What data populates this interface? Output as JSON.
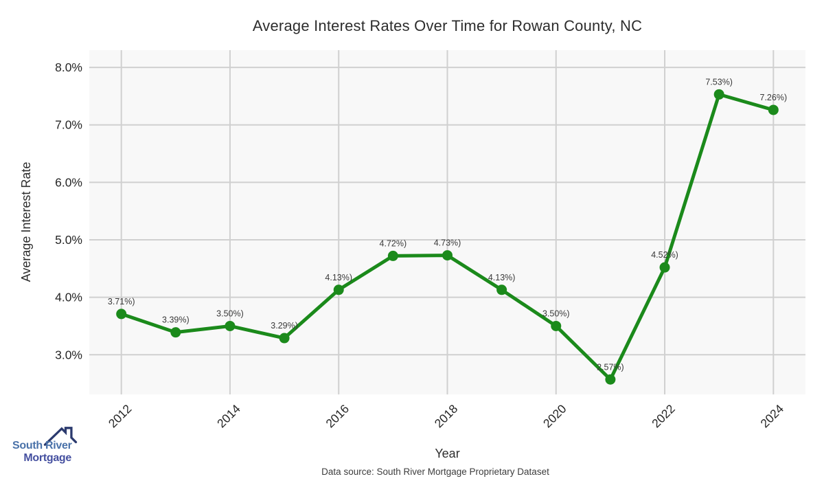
{
  "chart_data": {
    "type": "line",
    "title": "Average Interest Rates Over Time for Rowan County, NC",
    "xlabel": "Year",
    "ylabel": "Average Interest Rate",
    "x": [
      2012,
      2013,
      2014,
      2015,
      2016,
      2017,
      2018,
      2019,
      2020,
      2021,
      2022,
      2023,
      2024
    ],
    "values": [
      3.71,
      3.39,
      3.5,
      3.29,
      4.13,
      4.72,
      4.73,
      4.13,
      3.5,
      2.57,
      4.52,
      7.53,
      7.26
    ],
    "point_labels": [
      "3.71%)",
      "3.39%)",
      "3.50%)",
      "3.29%)",
      "4.13%)",
      "4.72%)",
      "4.73%)",
      "4.13%)",
      "3.50%)",
      "2.57%)",
      "4.52%)",
      "7.53%)",
      "7.26%)"
    ],
    "x_ticks": [
      2012,
      2014,
      2016,
      2018,
      2020,
      2022,
      2024
    ],
    "y_ticks": [
      "3.0%",
      "4.0%",
      "5.0%",
      "6.0%",
      "7.0%",
      "8.0%"
    ],
    "y_tick_values": [
      3,
      4,
      5,
      6,
      7,
      8
    ],
    "xlim": [
      2011.41,
      2024.59
    ],
    "ylim": [
      2.31,
      8.3
    ],
    "grid": true,
    "legend": false,
    "line_color": "#1b8a1b",
    "marker_color": "#1b8a1b",
    "plot_bg": "#f8f8f8",
    "grid_color": "#d0d0d0",
    "tick_color": "#262626",
    "point_label_color": "#3a3a3a"
  },
  "footer": {
    "data_source": "Data source: South River Mortgage Proprietary Dataset"
  },
  "logo": {
    "line1": "South River",
    "line2": "Mortgage",
    "colors": {
      "line1": "#4a72a9",
      "line2": "#4550a0",
      "roof": "#2b3a6e"
    }
  }
}
